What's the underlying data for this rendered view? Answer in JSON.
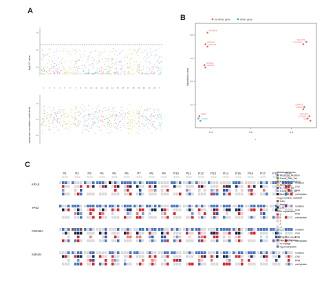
{
  "panels": {
    "a": "A",
    "b": "B",
    "c": "C"
  },
  "panel_a": {
    "top_ylabel": "-log10 P value",
    "bottom_ylabel": "spearman correlation coefficients",
    "chromosomes": [
      "1",
      "2",
      "3",
      "4",
      "5",
      "6",
      "7",
      "8",
      "9",
      "10",
      "11",
      "12",
      "13",
      "14",
      "15",
      "16",
      "17",
      "18",
      "19",
      "20",
      "21",
      "22",
      "X"
    ],
    "top_ticks": [
      "7.5",
      "5.0",
      "2.5"
    ],
    "bottom_ticks": [
      "0.5",
      "0.0",
      "-0.5"
    ]
  },
  "chart_data": {
    "type": "scatter",
    "xlabel": "r",
    "ylabel": "Adjusted p value",
    "xticks": [
      "-0.4",
      "0.0",
      "0.4"
    ],
    "yticks": [
      "0.04",
      "0.03",
      "0.02",
      "0.01"
    ],
    "xlim": [
      -0.55,
      0.65
    ],
    "ylim": [
      0.0,
      0.045
    ],
    "legend": {
      "position": "top",
      "entries": [
        "no-driver gene",
        "driver gene"
      ]
    },
    "series": [
      {
        "name": "no-driver gene",
        "color": "#e8675f",
        "points": [
          {
            "label": "KRAS/P26",
            "x": -0.43,
            "y": 0.041
          },
          {
            "label": "KRT8/P16",
            "x": -0.45,
            "y": 0.036
          },
          {
            "label": "KRT7/P6",
            "x": -0.43,
            "y": 0.035
          },
          {
            "label": "TP53/P11",
            "x": -0.46,
            "y": 0.027
          },
          {
            "label": "CDKN2A",
            "x": -0.45,
            "y": 0.026
          },
          {
            "label": "MUC4/P4",
            "x": 0.55,
            "y": 0.037
          },
          {
            "label": "CEACAM5",
            "x": 0.52,
            "y": 0.036
          },
          {
            "label": "CHPF/P3",
            "x": 0.53,
            "y": 0.009
          },
          {
            "label": "SCRG3",
            "x": 0.52,
            "y": 0.008
          },
          {
            "label": "MUC1/P5",
            "x": 0.58,
            "y": 0.005
          },
          {
            "label": "GCH1/P8",
            "x": 0.56,
            "y": 0.004
          },
          {
            "label": "S100P",
            "x": 0.59,
            "y": 0.003
          },
          {
            "label": "NADK",
            "x": -0.51,
            "y": 0.005
          }
        ]
      },
      {
        "name": "driver gene",
        "color": "#3fb4b0",
        "points": [
          {
            "label": "PLCB4",
            "x": -0.5,
            "y": 0.003
          },
          {
            "label": "",
            "x": -0.52,
            "y": 0.004
          }
        ]
      }
    ]
  },
  "panel_c": {
    "patients": [
      "P1",
      "P2",
      "P3",
      "P4",
      "P5",
      "P6",
      "P7",
      "P8",
      "P9",
      "P10",
      "P11",
      "P12",
      "P13",
      "P14",
      "P15",
      "P16",
      "P17",
      "P18",
      "P19"
    ],
    "sub": "T N1 N2 N3",
    "genes": [
      "KRAS",
      "TP53",
      "CDKN2A",
      "SMAD4"
    ],
    "row_labels": [
      "mutation",
      "CNV",
      "RNA",
      "methylation"
    ],
    "legend": {
      "mutation_title": "Mutational types",
      "mutation_items": [
        {
          "label": "Missense_Mutation",
          "color": "#4a78c4"
        },
        {
          "label": "Frame_Shift_Del",
          "color": "#3a9e4a"
        },
        {
          "label": "Nonsense_Mutation",
          "color": "#a0522d"
        },
        {
          "label": "Splice_Site",
          "color": "#e8b84a"
        },
        {
          "label": "In_Frame_Del",
          "color": "#7a3f9a"
        },
        {
          "label": "Frame_Shift_Ins",
          "color": "#9a9ad6"
        },
        {
          "label": "Multi_Hit",
          "color": "#111111"
        }
      ],
      "cnv_title": "Copy number variants",
      "cnv_items": [
        {
          "label": "Gain",
          "color": "#d8262c"
        },
        {
          "label": "Neutral",
          "color": "#d9d9d9"
        },
        {
          "label": "Loss",
          "color": "#16284d"
        }
      ],
      "rna_title": "RNA expression",
      "rna_items": [
        {
          "label": "6",
          "color": "#d8262c"
        },
        {
          "label": "4",
          "color": "#ec7f7a"
        },
        {
          "label": "2",
          "color": "#f6c9c6"
        },
        {
          "label": "0",
          "color": "#ffffff"
        },
        {
          "label": "-2",
          "color": "#c9d6ef"
        },
        {
          "label": "-4",
          "color": "#7d9bd6"
        },
        {
          "label": "-6",
          "color": "#2c5bb3"
        }
      ],
      "meth_title": "Methylation level",
      "meth_items": [
        {
          "label": "hypermethylation",
          "color": "#d8262c"
        },
        {
          "label": "no change",
          "color": "#d9d9d9"
        },
        {
          "label": "hypomethylation",
          "color": "#4a78c4"
        }
      ]
    }
  }
}
